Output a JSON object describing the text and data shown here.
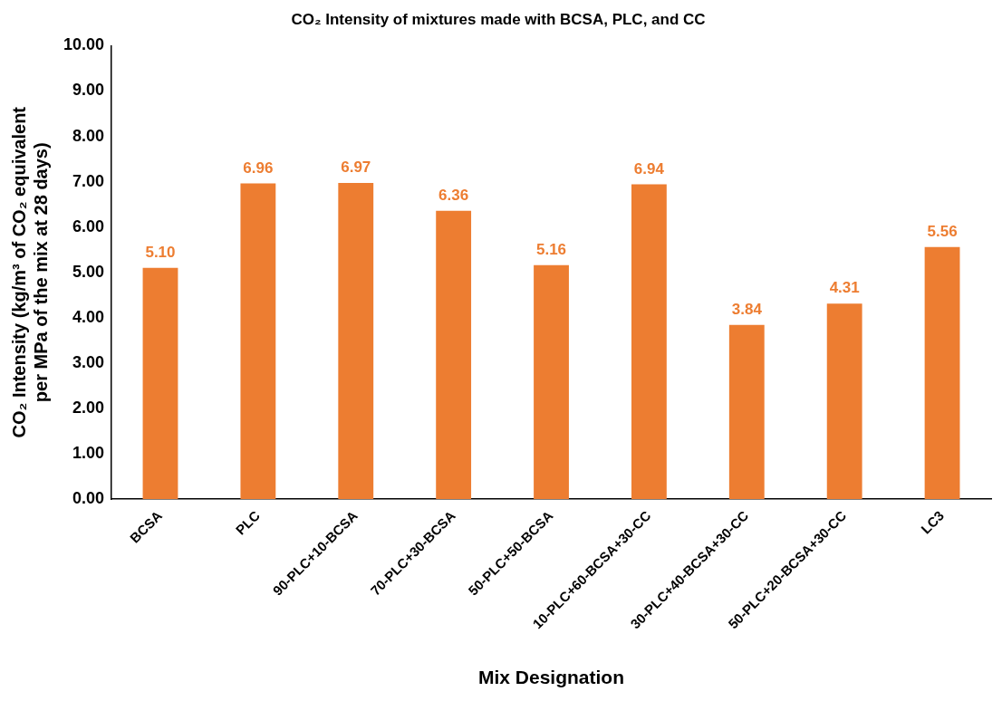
{
  "chart_data": {
    "type": "bar",
    "title": "CO₂ Intensity of mixtures made with BCSA, PLC, and CC",
    "xlabel": "Mix Designation",
    "ylabel": "CO₂ Intensity (kg/m³ of CO₂ equivalent per MPa of the mix at 28 days)",
    "categories": [
      "BCSA",
      "PLC",
      "90-PLC+10-BCSA",
      "70-PLC+30-BCSA",
      "50-PLC+50-BCSA",
      "10-PLC+60-BCSA+30-CC",
      "30-PLC+40-BCSA+30-CC",
      "50-PLC+20-BCSA+30-CC",
      "LC3"
    ],
    "values": [
      5.1,
      6.96,
      6.97,
      6.36,
      5.16,
      6.94,
      3.84,
      4.31,
      5.56
    ],
    "value_labels": [
      "5.10",
      "6.96",
      "6.97",
      "6.36",
      "5.16",
      "6.94",
      "3.84",
      "4.31",
      "5.56"
    ],
    "color": "#ed7d31",
    "ylim": [
      0,
      10
    ],
    "yticks": [
      {
        "value": 0,
        "label": "0.00"
      },
      {
        "value": 1,
        "label": "1.00"
      },
      {
        "value": 2,
        "label": "2.00"
      },
      {
        "value": 3,
        "label": "3.00"
      },
      {
        "value": 4,
        "label": "4.00"
      },
      {
        "value": 5,
        "label": "5.00"
      },
      {
        "value": 6,
        "label": "6.00"
      },
      {
        "value": 7,
        "label": "7.00"
      },
      {
        "value": 8,
        "label": "8.00"
      },
      {
        "value": 9,
        "label": "9.00"
      },
      {
        "value": 10,
        "label": "10.00"
      }
    ],
    "grid": false,
    "legend": false
  }
}
